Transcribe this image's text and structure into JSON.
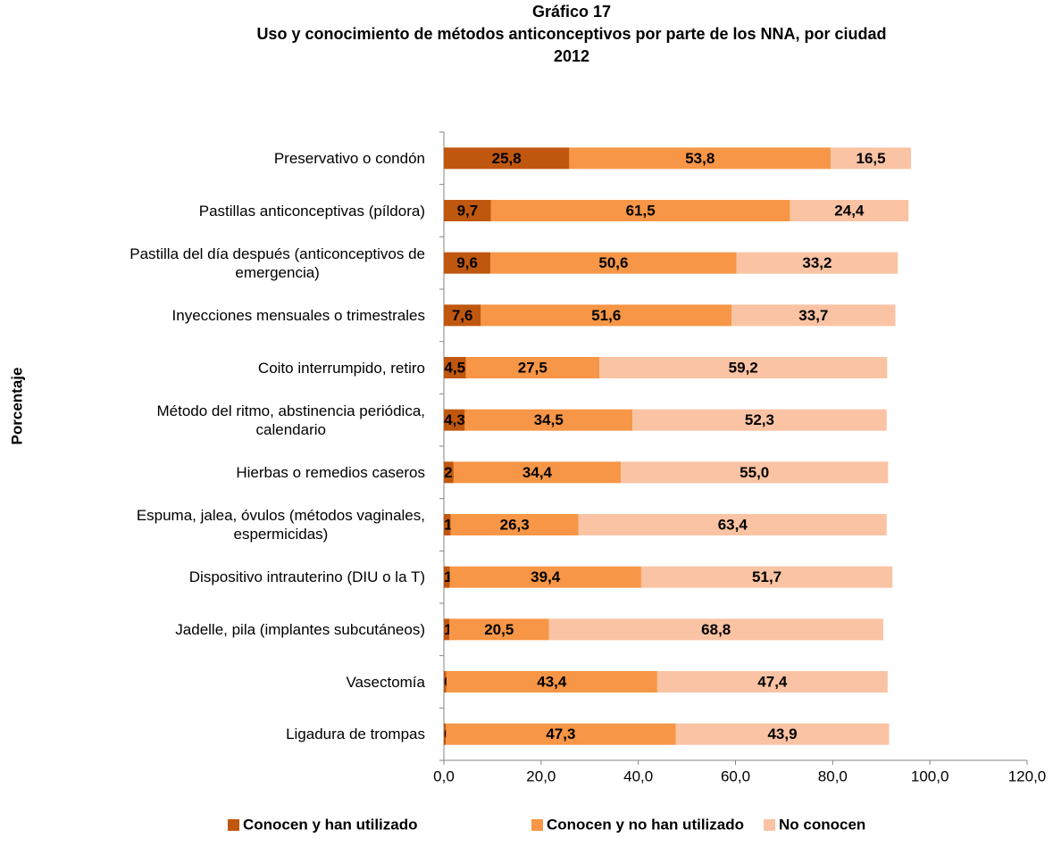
{
  "chart_data": {
    "type": "bar",
    "orientation": "horizontal",
    "stacked": true,
    "title": [
      "Gráfico 17",
      "Uso y conocimiento de métodos anticonceptivos por parte de los NNA, por ciudad",
      "2012"
    ],
    "y_label": "Porcentaje",
    "categories": [
      "Preservativo o condón",
      "Pastillas anticonceptivas (píldora)",
      "Pastilla del día después (anticonceptivos de\nemergencia)",
      "Inyecciones mensuales o trimestrales",
      "Coito interrumpido, retiro",
      "Método del ritmo, abstinencia periódica,\ncalendario",
      "Hierbas o remedios caseros",
      "Espuma, jalea, óvulos (métodos vaginales,\nespermicidas)",
      "Dispositivo intrauterino (DIU o la T)",
      "Jadelle, pila (implantes subcutáneos)",
      "Vasectomía",
      "Ligadura de trompas"
    ],
    "series": [
      {
        "name": "Conocen y han utilizado",
        "color": "#c0570f",
        "values": [
          25.8,
          9.7,
          9.6,
          7.6,
          4.5,
          4.3,
          2.0,
          1.4,
          1.2,
          1.1,
          0.5,
          0.4
        ],
        "value_labels": [
          "25,8",
          "9,7",
          "9,6",
          "7,6",
          "4,5",
          "4,3",
          "2,0",
          "1,4",
          "1,2",
          "1,1",
          "0,5",
          "0,4"
        ]
      },
      {
        "name": "Conocen y no han utilizado",
        "color": "#f79646",
        "values": [
          53.8,
          61.5,
          50.6,
          51.6,
          27.5,
          34.5,
          34.4,
          26.3,
          39.4,
          20.5,
          43.4,
          47.3
        ],
        "value_labels": [
          "53,8",
          "61,5",
          "50,6",
          "51,6",
          "27,5",
          "34,5",
          "34,4",
          "26,3",
          "39,4",
          "20,5",
          "43,4",
          "47,3"
        ]
      },
      {
        "name": "No conocen",
        "color": "#fac3a3",
        "values": [
          16.5,
          24.4,
          33.2,
          33.7,
          59.2,
          52.3,
          55.0,
          63.4,
          51.7,
          68.8,
          47.4,
          43.9
        ],
        "value_labels": [
          "16,5",
          "24,4",
          "33,2",
          "33,7",
          "59,2",
          "52,3",
          "55,0",
          "63,4",
          "51,7",
          "68,8",
          "47,4",
          "43,9"
        ]
      }
    ],
    "xlim": [
      0,
      120
    ],
    "xticks": [
      {
        "value": 0,
        "label": "0,0"
      },
      {
        "value": 20,
        "label": "20,0"
      },
      {
        "value": 40,
        "label": "40,0"
      },
      {
        "value": 60,
        "label": "60,0"
      },
      {
        "value": 80,
        "label": "80,0"
      },
      {
        "value": 100,
        "label": "100,0"
      },
      {
        "value": 120,
        "label": "120,0"
      }
    ],
    "legend": "bottom"
  }
}
